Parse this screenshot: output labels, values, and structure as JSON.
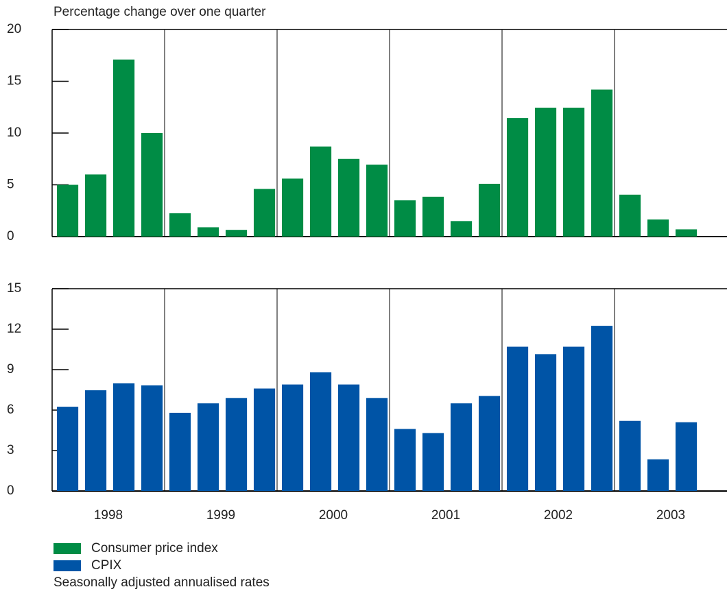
{
  "chart_data": [
    {
      "type": "bar",
      "y_label": "Percentage change over one quarter",
      "x_labels": [
        "1998",
        "1999",
        "2000",
        "2001",
        "2002",
        "2003"
      ],
      "series": [
        {
          "name": "Consumer price index",
          "color": "#008c45",
          "values": [
            5.0,
            6.0,
            17.1,
            10.0,
            2.25,
            0.9,
            0.65,
            4.6,
            5.6,
            8.7,
            7.5,
            6.95,
            3.5,
            3.85,
            1.5,
            5.1,
            11.45,
            12.45,
            12.45,
            14.2,
            4.05,
            1.65,
            0.7
          ]
        }
      ],
      "ylim": [
        0,
        20
      ],
      "yticks": [
        0,
        5,
        10,
        15,
        20
      ]
    },
    {
      "type": "bar",
      "x_labels": [
        "1998",
        "1999",
        "2000",
        "2001",
        "2002",
        "2003"
      ],
      "series": [
        {
          "name": "CPIX",
          "color": "#0054a6",
          "values": [
            6.25,
            7.47,
            7.98,
            7.83,
            5.8,
            6.5,
            6.9,
            7.6,
            7.9,
            8.8,
            7.9,
            6.9,
            4.6,
            4.3,
            6.5,
            7.05,
            10.7,
            10.15,
            10.7,
            12.25,
            5.2,
            2.35,
            5.1
          ]
        }
      ],
      "ylim": [
        0,
        15
      ],
      "yticks": [
        0,
        3,
        6,
        9,
        12,
        15
      ],
      "footnote": "Seasonally adjusted annualised rates"
    }
  ]
}
